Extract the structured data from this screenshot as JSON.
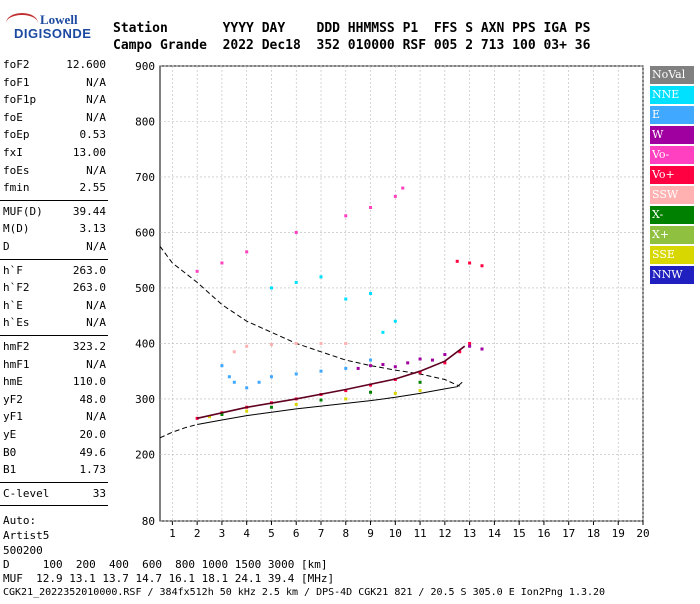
{
  "logo": {
    "line1": "Lowell",
    "line2": "DIGISONDE"
  },
  "header": {
    "row1": "Station       YYYY DAY    DDD HHMMSS P1  FFS S AXN PPS IGA PS",
    "row2": "Campo Grande  2022 Dec18  352 010000 RSF 005 2 713 100 03+ 36"
  },
  "params": {
    "group1": [
      {
        "name": "foF2",
        "value": "12.600"
      },
      {
        "name": "foF1",
        "value": "N/A"
      },
      {
        "name": "foF1p",
        "value": "N/A"
      },
      {
        "name": "foE",
        "value": "N/A"
      },
      {
        "name": "foEp",
        "value": "0.53"
      },
      {
        "name": "fxI",
        "value": "13.00"
      },
      {
        "name": "foEs",
        "value": "N/A"
      },
      {
        "name": "fmin",
        "value": "2.55"
      }
    ],
    "group2": [
      {
        "name": "MUF(D)",
        "value": "39.44"
      },
      {
        "name": "M(D)",
        "value": "3.13"
      },
      {
        "name": "D",
        "value": "N/A"
      }
    ],
    "group3": [
      {
        "name": "h`F",
        "value": "263.0"
      },
      {
        "name": "h`F2",
        "value": "263.0"
      },
      {
        "name": "h`E",
        "value": "N/A"
      },
      {
        "name": "h`Es",
        "value": "N/A"
      }
    ],
    "group4": [
      {
        "name": "hmF2",
        "value": "323.2"
      },
      {
        "name": "hmF1",
        "value": "N/A"
      },
      {
        "name": "hmE",
        "value": "110.0"
      },
      {
        "name": "yF2",
        "value": "48.0"
      },
      {
        "name": "yF1",
        "value": "N/A"
      },
      {
        "name": "yE",
        "value": "20.0"
      },
      {
        "name": "B0",
        "value": "49.6"
      },
      {
        "name": "B1",
        "value": "1.73"
      }
    ],
    "group5": [
      {
        "name": "C-level",
        "value": "33"
      }
    ],
    "auto": [
      "Auto:",
      "Artist5",
      "500200"
    ]
  },
  "legend": [
    {
      "label": "NoVal",
      "color": "#808080"
    },
    {
      "label": "NNE",
      "color": "#00e0ff"
    },
    {
      "label": "E",
      "color": "#40a8ff"
    },
    {
      "label": "W",
      "color": "#a000a0"
    },
    {
      "label": "Vo-",
      "color": "#ff40c0"
    },
    {
      "label": "Vo+",
      "color": "#ff0040"
    },
    {
      "label": "SSW",
      "color": "#ffb0b0"
    },
    {
      "label": "X-",
      "color": "#008000"
    },
    {
      "label": "X+",
      "color": "#90c040"
    },
    {
      "label": "SSE",
      "color": "#d8d800"
    },
    {
      "label": "NNW",
      "color": "#2020c0"
    }
  ],
  "chart_data": {
    "type": "scatter",
    "x_ticks": [
      "1",
      "2",
      "3",
      "4",
      "5",
      "6",
      "7",
      "8",
      "9",
      "10",
      "11",
      "12",
      "13",
      "14",
      "15",
      "16",
      "17",
      "18",
      "19",
      "20"
    ],
    "y_ticks": [
      "80",
      "200",
      "300",
      "400",
      "500",
      "600",
      "700",
      "800",
      "900"
    ],
    "xlim": [
      0.5,
      20
    ],
    "ylim": [
      80,
      900
    ],
    "grid": true,
    "series": [
      {
        "color": "#ff0040",
        "points": [
          [
            2.0,
            265
          ],
          [
            3.0,
            275
          ],
          [
            4.0,
            285
          ],
          [
            5.0,
            293
          ],
          [
            6.0,
            300
          ],
          [
            7.0,
            308
          ],
          [
            8.0,
            315
          ],
          [
            9.0,
            325
          ],
          [
            10.0,
            335
          ],
          [
            11.0,
            348
          ],
          [
            12.0,
            365
          ],
          [
            12.6,
            385
          ],
          [
            13.0,
            400
          ]
        ]
      },
      {
        "color": "#a000a0",
        "points": [
          [
            8.5,
            355
          ],
          [
            9.0,
            360
          ],
          [
            9.5,
            362
          ],
          [
            10.0,
            358
          ],
          [
            10.5,
            365
          ],
          [
            11.0,
            372
          ],
          [
            11.5,
            370
          ],
          [
            12.0,
            380
          ],
          [
            13.0,
            395
          ],
          [
            13.5,
            390
          ]
        ]
      },
      {
        "color": "#40a8ff",
        "points": [
          [
            3.0,
            360
          ],
          [
            3.3,
            340
          ],
          [
            3.5,
            330
          ],
          [
            4.0,
            320
          ],
          [
            4.5,
            330
          ],
          [
            5.0,
            340
          ],
          [
            6.0,
            345
          ],
          [
            7.0,
            350
          ],
          [
            8.0,
            355
          ],
          [
            9.0,
            370
          ]
        ]
      },
      {
        "color": "#00e0ff",
        "points": [
          [
            5.0,
            500
          ],
          [
            6.0,
            510
          ],
          [
            7.0,
            520
          ],
          [
            8.0,
            480
          ],
          [
            9.0,
            490
          ],
          [
            9.5,
            420
          ],
          [
            10.0,
            440
          ]
        ]
      },
      {
        "color": "#ffb0b0",
        "points": [
          [
            3.5,
            385
          ],
          [
            4.0,
            395
          ],
          [
            5.0,
            398
          ],
          [
            6.0,
            400
          ],
          [
            7.0,
            400
          ],
          [
            8.0,
            400
          ]
        ]
      },
      {
        "color": "#d8d800",
        "points": [
          [
            2.5,
            268
          ],
          [
            4.0,
            278
          ],
          [
            6.0,
            290
          ],
          [
            8.0,
            300
          ],
          [
            10.0,
            310
          ],
          [
            11.0,
            315
          ]
        ]
      },
      {
        "color": "#008000",
        "points": [
          [
            3.0,
            272
          ],
          [
            5.0,
            285
          ],
          [
            7.0,
            298
          ],
          [
            9.0,
            312
          ],
          [
            11.0,
            330
          ]
        ]
      },
      {
        "color": "#ff40c0",
        "points": [
          [
            2.0,
            530
          ],
          [
            3.0,
            545
          ],
          [
            4.0,
            565
          ],
          [
            6.0,
            600
          ],
          [
            8.0,
            630
          ],
          [
            9.0,
            645
          ],
          [
            10.0,
            665
          ],
          [
            10.3,
            680
          ]
        ]
      },
      {
        "color": "#ff0040",
        "points": [
          [
            12.5,
            548
          ],
          [
            13.0,
            545
          ],
          [
            13.5,
            540
          ]
        ]
      }
    ],
    "profile_dashed": [
      [
        0.5,
        575
      ],
      [
        1.0,
        545
      ],
      [
        2.0,
        510
      ],
      [
        3.0,
        470
      ],
      [
        4.0,
        440
      ],
      [
        5.0,
        420
      ],
      [
        6.0,
        400
      ],
      [
        7.0,
        385
      ],
      [
        8.0,
        370
      ],
      [
        9.0,
        360
      ],
      [
        10.0,
        352
      ],
      [
        11.0,
        345
      ],
      [
        12.0,
        335
      ],
      [
        12.6,
        323
      ]
    ],
    "lower_dashed": [
      [
        0.5,
        230
      ],
      [
        1.0,
        240
      ],
      [
        1.5,
        248
      ],
      [
        2.0,
        254
      ]
    ],
    "trace_solid": [
      [
        2.0,
        254
      ],
      [
        3.0,
        262
      ],
      [
        4.0,
        270
      ],
      [
        5.0,
        276
      ],
      [
        6.0,
        282
      ],
      [
        7.0,
        287
      ],
      [
        8.0,
        292
      ],
      [
        9.0,
        297
      ],
      [
        10.0,
        303
      ],
      [
        11.0,
        310
      ],
      [
        12.0,
        318
      ],
      [
        12.5,
        322
      ],
      [
        12.7,
        330
      ]
    ],
    "trace_fit": [
      [
        2.0,
        265
      ],
      [
        4.0,
        285
      ],
      [
        6.0,
        300
      ],
      [
        8.0,
        317
      ],
      [
        10.0,
        336
      ],
      [
        11.0,
        350
      ],
      [
        12.0,
        368
      ],
      [
        12.8,
        395
      ]
    ]
  },
  "bottom": {
    "line1": "D     100  200  400  600  800 1000 1500 3000 [km]",
    "line2": "MUF  12.9 13.1 13.7 14.7 16.1 18.1 24.1 39.4 [MHz]",
    "line3": "CGK21_2022352010000.RSF / 384fx512h 50 kHz 2.5 km / DPS-4D CGK21 821 / 20.5 S 305.0 E Ion2Png 1.3.20"
  }
}
